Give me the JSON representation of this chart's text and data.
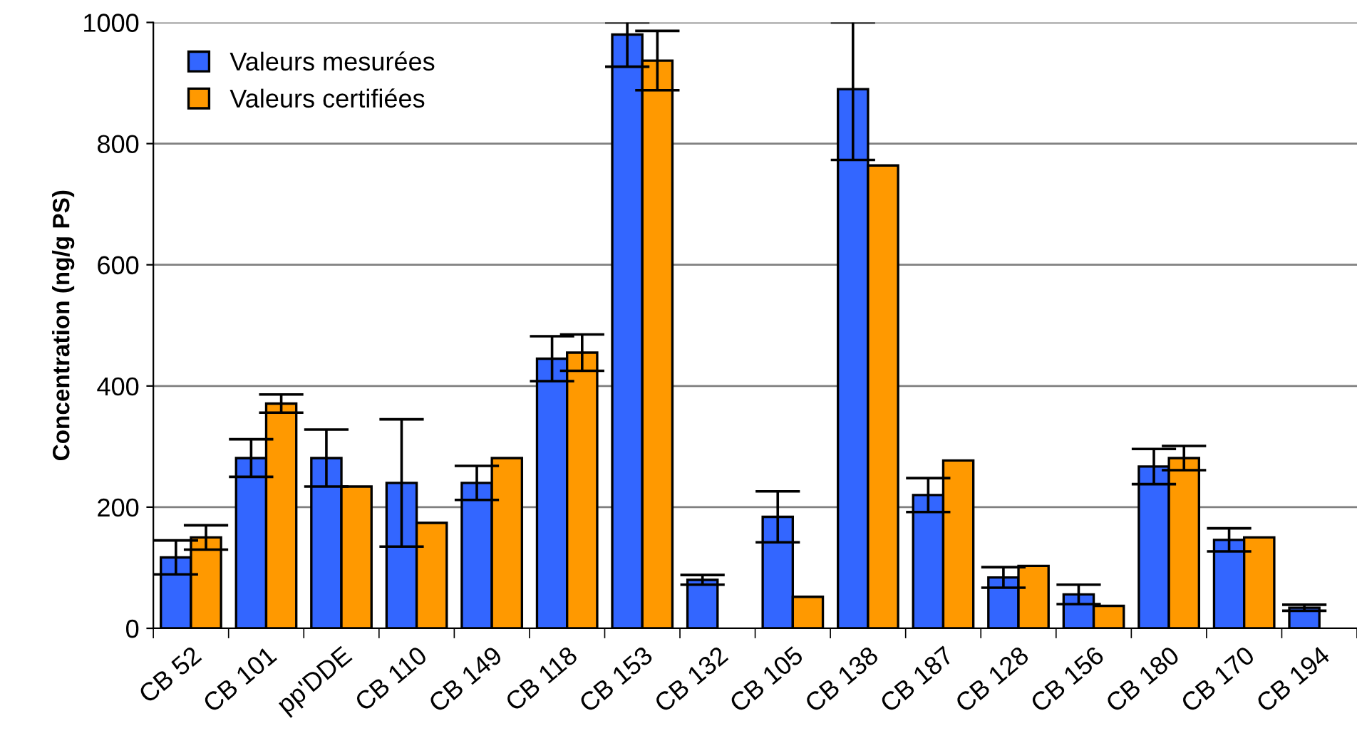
{
  "chart_data": {
    "type": "bar",
    "ylabel": "Concentration (ng/g PS)",
    "categories": [
      "CB 52",
      "CB 101",
      "pp'DDE",
      "CB 110",
      "CB 149",
      "CB 118",
      "CB 153",
      "CB 132",
      "CB 105",
      "CB 138",
      "CB 187",
      "CB 128",
      "CB 156",
      "CB 180",
      "CB 170",
      "CB 194"
    ],
    "series": [
      {
        "name": "Valeurs mesurées",
        "color": "#3366ff",
        "values": [
          117,
          281,
          281,
          240,
          240,
          445,
          980,
          80,
          184,
          890,
          220,
          84,
          56,
          267,
          146,
          34
        ],
        "errors": [
          28,
          31,
          47,
          105,
          28,
          37,
          [
            927,
            1000
          ],
          8,
          42,
          [
            773,
            1000
          ],
          28,
          17,
          16,
          29,
          19,
          5
        ]
      },
      {
        "name": "Valeurs certifiées",
        "color": "#ff9900",
        "values": [
          150,
          371,
          234,
          174,
          281,
          455,
          937,
          null,
          52,
          764,
          277,
          103,
          37,
          281,
          150,
          null
        ],
        "errors": [
          20,
          15,
          null,
          null,
          null,
          30,
          49,
          null,
          null,
          null,
          null,
          null,
          null,
          20,
          null,
          null
        ]
      }
    ],
    "ylim": [
      0,
      1000
    ],
    "yticks": [
      0,
      200,
      400,
      600,
      800,
      1000
    ],
    "grid": "y",
    "legend": "top left"
  }
}
